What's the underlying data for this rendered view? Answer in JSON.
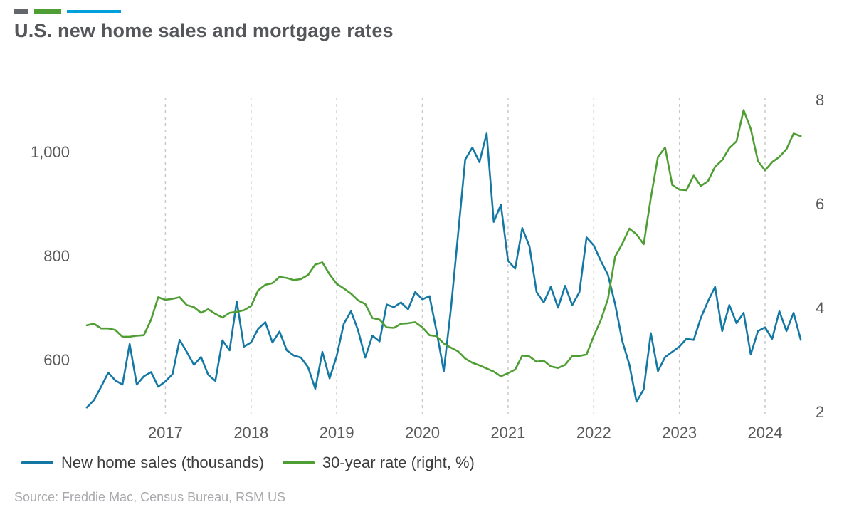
{
  "header": {
    "brand_bars": {
      "colors": [
        "#63666a",
        "#4f9e33",
        "#00a0dd"
      ]
    }
  },
  "legend": {
    "items": [
      {
        "label": "New home sales (thousands)",
        "color": "#1478a5"
      },
      {
        "label": "30-year rate (right, %)",
        "color": "#4f9e33"
      }
    ]
  },
  "footer": {
    "source": "Source: Freddie Mac, Census Bureau, RSM US"
  },
  "chart_data": {
    "type": "line",
    "title": "U.S. new home sales and mortgage rates",
    "frequency": "monthly",
    "x_start": 2016.083,
    "x_domain": [
      2016.0,
      2024.44
    ],
    "x_ticks": [
      2017,
      2018,
      2019,
      2020,
      2021,
      2022,
      2023,
      2024
    ],
    "left_axis": {
      "ticks": [
        "600",
        "800",
        "1,000"
      ],
      "tick_values": [
        600,
        800,
        1000
      ],
      "domain": [
        500,
        1100
      ]
    },
    "right_axis": {
      "ticks": [
        "2",
        "4",
        "6",
        "8"
      ],
      "tick_values": [
        2,
        4,
        6,
        8
      ],
      "domain": [
        2,
        8
      ]
    },
    "grid": {
      "vertical_dashed": true,
      "horizontal": false,
      "color": "#c8c9ca"
    },
    "axis_label_color": "#595a5c",
    "legend_position": "bottom-left",
    "series": [
      {
        "name": "New home sales (thousands)",
        "axis": "left",
        "color": "#1478a5",
        "values": [
          508,
          522,
          548,
          575,
          560,
          552,
          630,
          552,
          568,
          576,
          548,
          558,
          572,
          638,
          615,
          590,
          605,
          571,
          559,
          637,
          618,
          712,
          625,
          633,
          659,
          672,
          633,
          654,
          618,
          608,
          604,
          585,
          544,
          615,
          564,
          607,
          669,
          693,
          656,
          604,
          646,
          635,
          706,
          701,
          710,
          697,
          730,
          716,
          722,
          654,
          578,
          698,
          840,
          985,
          1008,
          980,
          1035,
          865,
          898,
          790,
          775,
          853,
          818,
          730,
          710,
          740,
          700,
          742,
          705,
          730,
          835,
          820,
          790,
          763,
          707,
          636,
          590,
          519,
          543,
          651,
          578,
          605,
          615,
          625,
          640,
          638,
          680,
          712,
          740,
          655,
          705,
          670,
          690,
          610,
          655,
          662,
          640,
          693,
          655,
          690,
          638
        ]
      },
      {
        "name": "30-year rate (right, %)",
        "axis": "right",
        "color": "#4f9e33",
        "values": [
          3.66,
          3.69,
          3.6,
          3.6,
          3.57,
          3.44,
          3.44,
          3.46,
          3.47,
          3.77,
          4.2,
          4.15,
          4.17,
          4.2,
          4.05,
          4.01,
          3.9,
          3.97,
          3.88,
          3.81,
          3.9,
          3.92,
          3.95,
          4.03,
          4.33,
          4.44,
          4.47,
          4.59,
          4.57,
          4.53,
          4.55,
          4.63,
          4.83,
          4.87,
          4.64,
          4.46,
          4.37,
          4.27,
          4.14,
          4.07,
          3.8,
          3.77,
          3.62,
          3.61,
          3.69,
          3.7,
          3.72,
          3.62,
          3.47,
          3.45,
          3.31,
          3.23,
          3.16,
          3.02,
          2.94,
          2.89,
          2.83,
          2.77,
          2.68,
          2.74,
          2.81,
          3.08,
          3.06,
          2.96,
          2.98,
          2.87,
          2.84,
          2.9,
          3.07,
          3.07,
          3.1,
          3.45,
          3.76,
          4.17,
          4.98,
          5.23,
          5.52,
          5.41,
          5.22,
          6.11,
          6.9,
          7.08,
          6.36,
          6.27,
          6.26,
          6.54,
          6.34,
          6.43,
          6.71,
          6.84,
          7.07,
          7.2,
          7.8,
          7.44,
          6.82,
          6.64,
          6.8,
          6.9,
          7.05,
          7.35,
          7.3
        ]
      }
    ]
  }
}
